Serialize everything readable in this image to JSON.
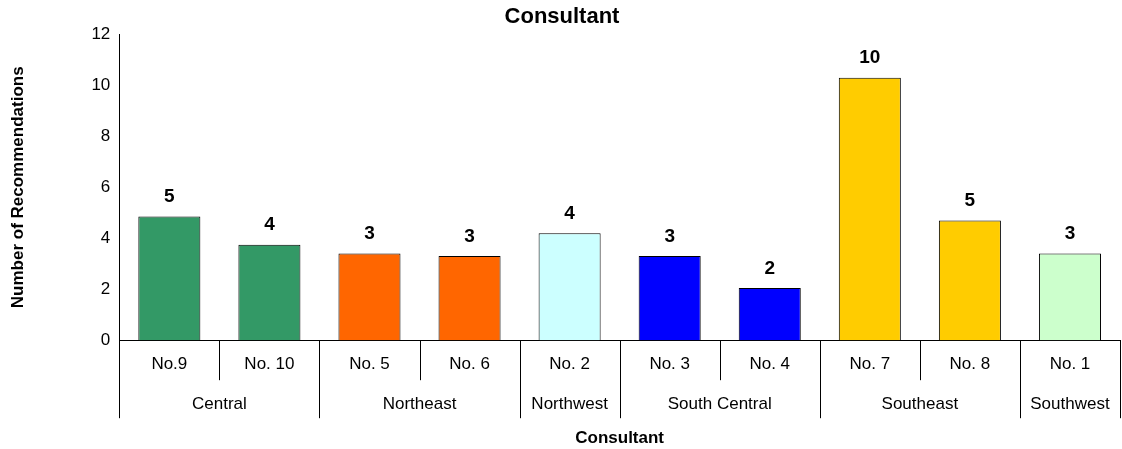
{
  "chart_data": {
    "type": "bar",
    "title": "Consultant",
    "xlabel": "Consultant",
    "ylabel": "Number of Recommendations",
    "categories": [
      "No.9",
      "No. 10",
      "No. 5",
      "No. 6",
      "No. 2",
      "No. 3",
      "No. 4",
      "No. 7",
      "No. 8",
      "No. 1"
    ],
    "values": [
      4.85,
      3.75,
      3.4,
      3.3,
      4.2,
      3.3,
      2.05,
      10.3,
      4.7,
      3.4
    ],
    "value_labels": [
      "5",
      "4",
      "3",
      "3",
      "4",
      "3",
      "2",
      "10",
      "5",
      "3"
    ],
    "colors": [
      "#339966",
      "#339966",
      "#ff6600",
      "#ff6600",
      "#ccffff",
      "#0000ff",
      "#0000ff",
      "#ffcc00",
      "#ffcc00",
      "#ccffcc"
    ],
    "annotations": [
      "Central",
      "Northeast",
      "Northwest",
      "South Central",
      "Southeast",
      "Southwest"
    ],
    "ylim": [
      0,
      12
    ],
    "yticks": [
      0,
      2,
      4,
      6,
      8,
      10,
      12
    ],
    "grid": false,
    "legend": false
  }
}
